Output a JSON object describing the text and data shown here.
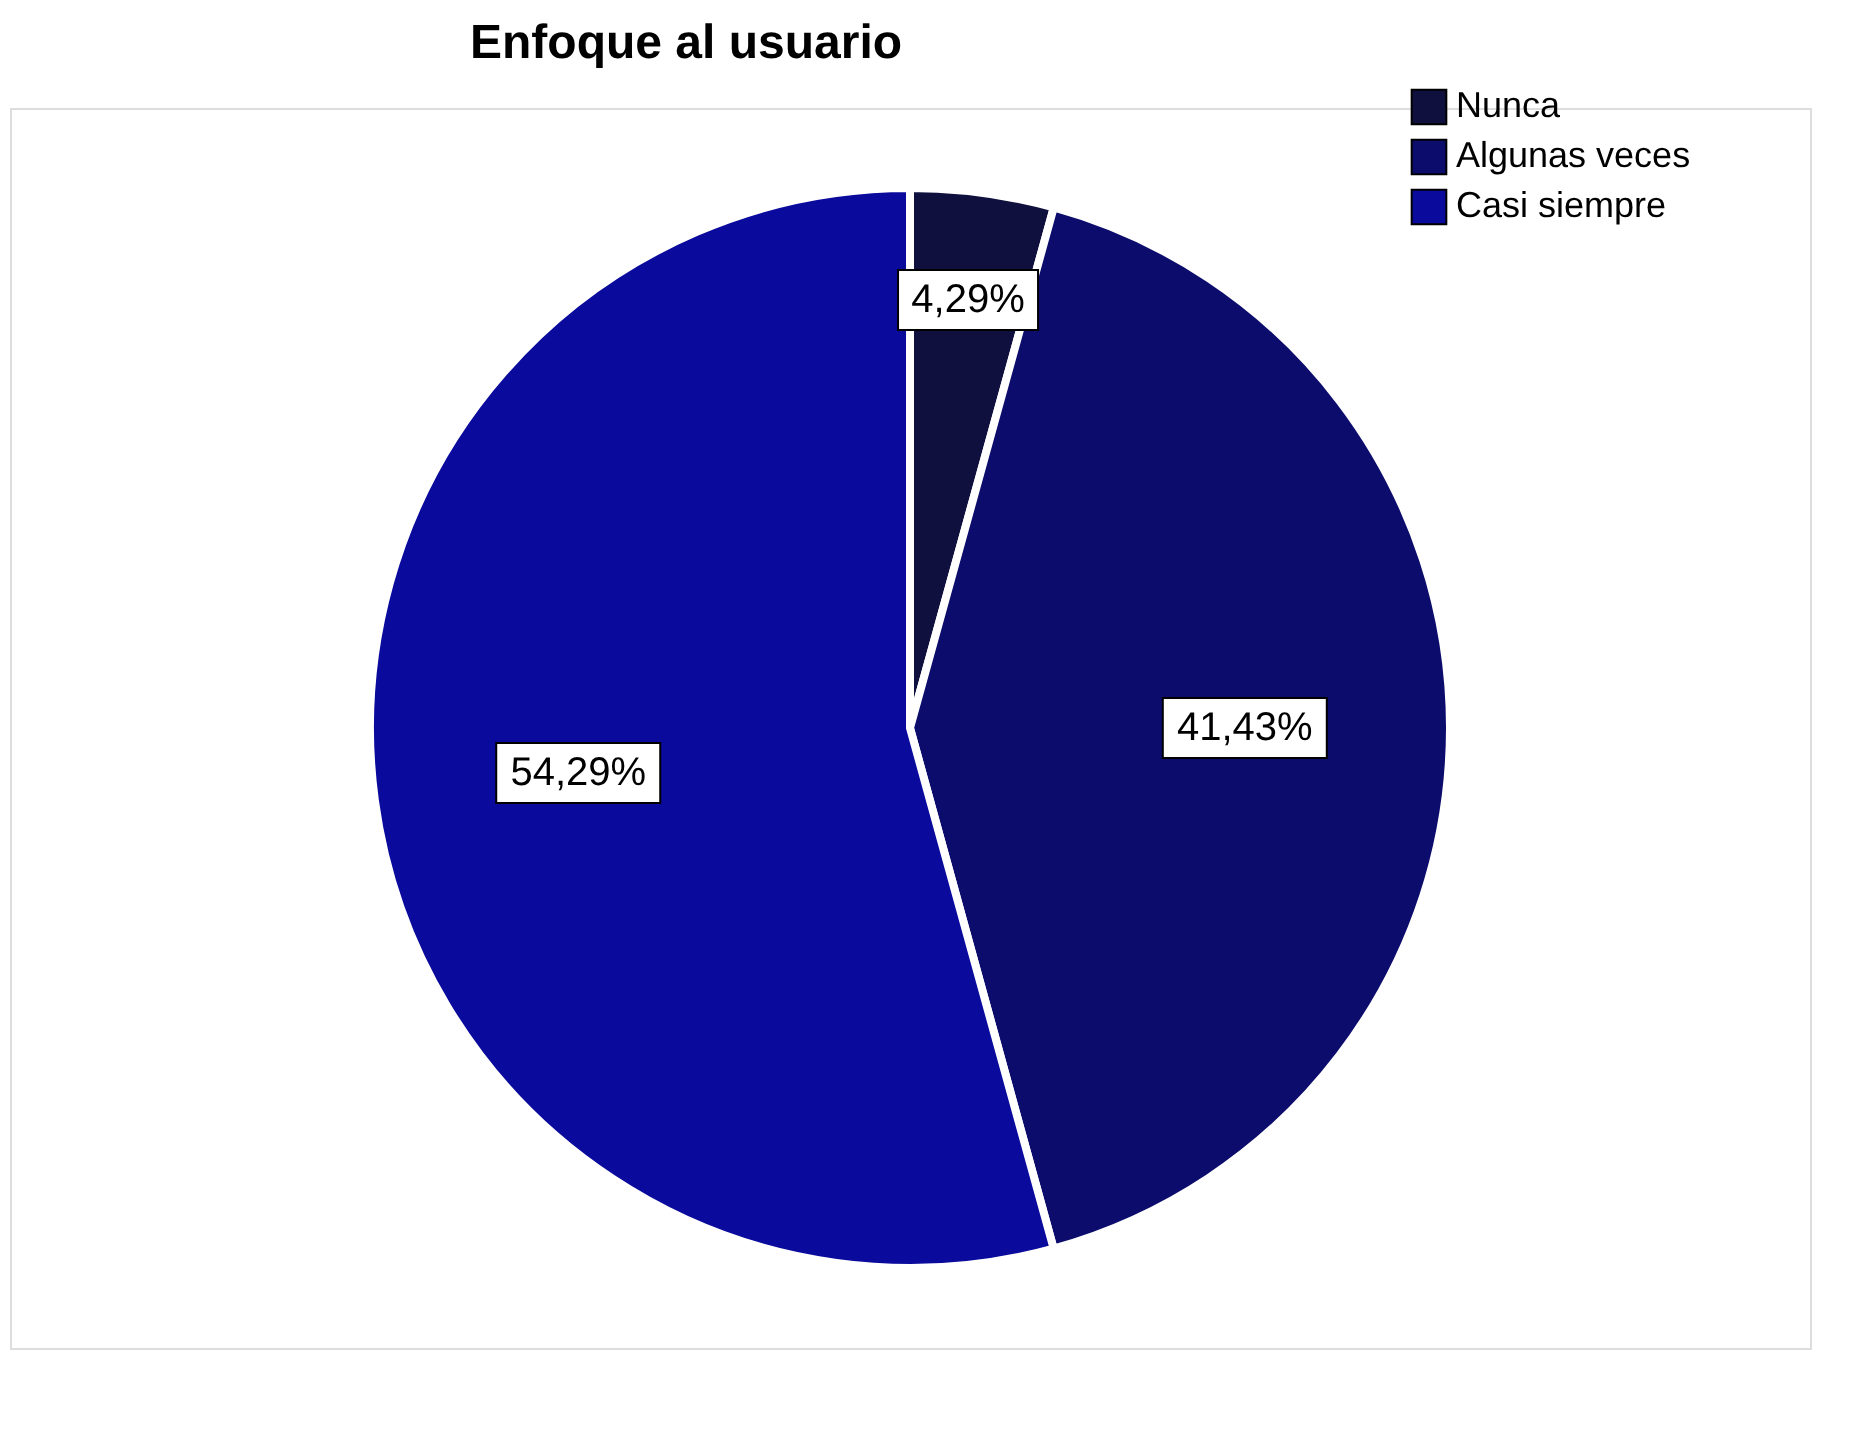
{
  "chart_data": {
    "type": "pie",
    "title": "Enfoque al usuario",
    "categories": [
      "Nunca",
      "Algunas veces",
      "Casi siempre"
    ],
    "values": [
      4.29,
      41.43,
      54.29
    ],
    "colors": [
      "#10103f",
      "#0c0c6c",
      "#0a0a9c"
    ],
    "value_labels": [
      "4,29%",
      "41,43%",
      "54,29%"
    ],
    "legend": "top right"
  }
}
